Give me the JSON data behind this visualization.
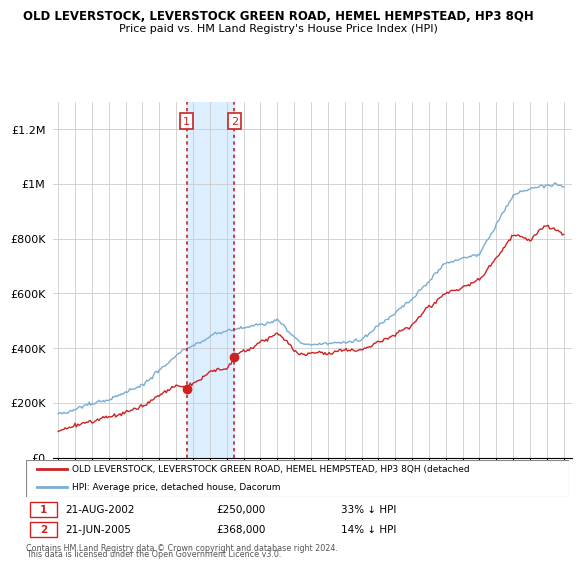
{
  "title": "OLD LEVERSTOCK, LEVERSTOCK GREEN ROAD, HEMEL HEMPSTEAD, HP3 8QH",
  "subtitle": "Price paid vs. HM Land Registry's House Price Index (HPI)",
  "ylabel_ticks": [
    "£0",
    "£200K",
    "£400K",
    "£600K",
    "£800K",
    "£1M",
    "£1.2M"
  ],
  "ytick_vals": [
    0,
    200000,
    400000,
    600000,
    800000,
    1000000,
    1200000
  ],
  "ylim": [
    0,
    1300000
  ],
  "xlim_start": 1994.7,
  "xlim_end": 2025.5,
  "hpi_color": "#7aadd4",
  "price_color": "#cc2222",
  "shading_color": "#ddeeff",
  "sale1_year": 2002.63,
  "sale1_price": 250000,
  "sale2_year": 2005.46,
  "sale2_price": 368000,
  "legend_label1": "OLD LEVERSTOCK, LEVERSTOCK GREEN ROAD, HEMEL HEMPSTEAD, HP3 8QH (detached",
  "legend_label2": "HPI: Average price, detached house, Dacorum",
  "table_row1": [
    "1",
    "21-AUG-2002",
    "£250,000",
    "33% ↓ HPI"
  ],
  "table_row2": [
    "2",
    "21-JUN-2005",
    "£368,000",
    "14% ↓ HPI"
  ],
  "footer1": "Contains HM Land Registry data © Crown copyright and database right 2024.",
  "footer2": "This data is licensed under the Open Government Licence v3.0."
}
